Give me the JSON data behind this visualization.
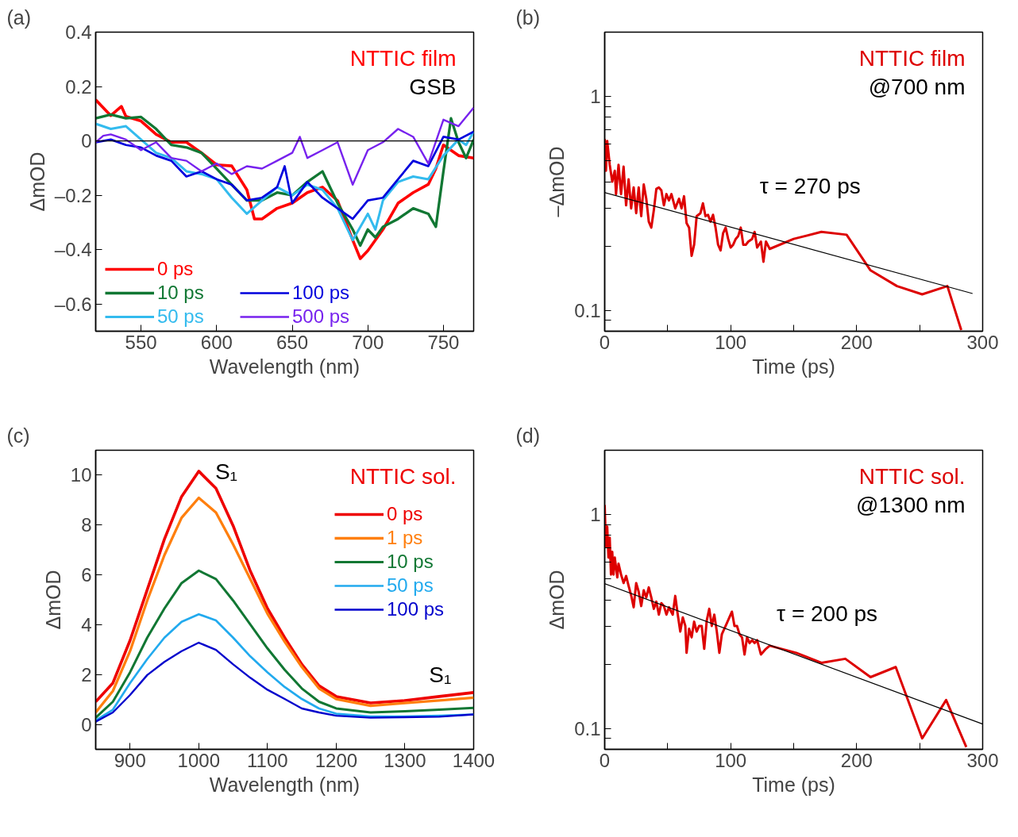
{
  "chart_data": [
    {
      "type": "line",
      "xlabel": "Wavelength (nm)",
      "ylabel": "ΔmOD",
      "xlim": [
        520,
        770
      ],
      "ylim": [
        -0.7,
        0.4
      ],
      "xticks": [
        550,
        600,
        650,
        700,
        750
      ],
      "yticks": [
        0.4,
        0.2,
        0,
        {
          "value": -0.2,
          "label": "–0.2"
        },
        {
          "value": -0.4,
          "label": "–0.4"
        },
        {
          "value": -0.6,
          "label": "–0.6"
        }
      ],
      "legend": "bottom left",
      "series": [
        {
          "name": "0 ps",
          "color": "#ff0000",
          "x": [
            520,
            530,
            537,
            540,
            550,
            560,
            570,
            580,
            590,
            600,
            610,
            620,
            625,
            630,
            640,
            650,
            660,
            670,
            680,
            690,
            695,
            700,
            710,
            720,
            730,
            740,
            745,
            750,
            760,
            770
          ],
          "values": [
            0.151,
            0.093,
            0.127,
            0.09,
            0.073,
            0.024,
            -0.005,
            -0.005,
            -0.044,
            -0.088,
            -0.092,
            -0.18,
            -0.287,
            -0.287,
            -0.248,
            -0.229,
            -0.19,
            -0.17,
            -0.22,
            -0.365,
            -0.433,
            -0.404,
            -0.326,
            -0.229,
            -0.19,
            -0.16,
            -0.102,
            -0.015,
            -0.054,
            -0.063
          ]
        },
        {
          "name": "10 ps",
          "color": "#117733",
          "x": [
            520,
            530,
            540,
            550,
            560,
            570,
            580,
            590,
            600,
            610,
            620,
            630,
            640,
            650,
            660,
            670,
            680,
            690,
            695,
            700,
            705,
            710,
            720,
            730,
            740,
            745,
            750,
            755,
            760,
            765,
            770
          ],
          "values": [
            0.083,
            0.097,
            0.083,
            0.088,
            0.044,
            -0.015,
            -0.024,
            -0.044,
            -0.102,
            -0.161,
            -0.219,
            -0.219,
            -0.19,
            -0.2,
            -0.151,
            -0.112,
            -0.229,
            -0.326,
            -0.385,
            -0.326,
            -0.355,
            -0.316,
            -0.287,
            -0.248,
            -0.268,
            -0.316,
            -0.112,
            0.083,
            -0.005,
            -0.063,
            0.005
          ]
        },
        {
          "name": "50 ps",
          "color": "#33bbee",
          "x": [
            520,
            530,
            540,
            550,
            560,
            570,
            580,
            590,
            600,
            610,
            620,
            630,
            640,
            650,
            660,
            670,
            680,
            690,
            700,
            705,
            710,
            720,
            730,
            740,
            750,
            760,
            765,
            770
          ],
          "values": [
            0.063,
            0.044,
            0.054,
            0.005,
            -0.044,
            -0.063,
            -0.112,
            -0.122,
            -0.141,
            -0.209,
            -0.268,
            -0.219,
            -0.17,
            -0.2,
            -0.161,
            -0.18,
            -0.248,
            -0.365,
            -0.268,
            -0.326,
            -0.219,
            -0.151,
            -0.131,
            -0.141,
            -0.054,
            0.005,
            -0.015,
            0.034
          ]
        },
        {
          "name": "100 ps",
          "color": "#0000dd",
          "x": [
            520,
            530,
            540,
            550,
            560,
            570,
            580,
            590,
            600,
            610,
            620,
            630,
            640,
            645,
            650,
            660,
            670,
            680,
            690,
            700,
            710,
            720,
            730,
            740,
            750,
            760,
            770
          ],
          "values": [
            -0.005,
            0.005,
            -0.015,
            -0.024,
            -0.054,
            -0.073,
            -0.131,
            -0.112,
            -0.141,
            -0.161,
            -0.219,
            -0.209,
            -0.17,
            -0.093,
            -0.229,
            -0.151,
            -0.209,
            -0.248,
            -0.287,
            -0.219,
            -0.209,
            -0.141,
            -0.073,
            -0.093,
            0.015,
            0.005,
            0.034
          ]
        },
        {
          "name": "500 ps",
          "color": "#7722ee",
          "x": [
            520,
            525,
            530,
            540,
            550,
            560,
            570,
            580,
            590,
            600,
            610,
            620,
            630,
            640,
            650,
            655,
            660,
            670,
            680,
            690,
            700,
            710,
            720,
            730,
            740,
            750,
            760,
            770
          ],
          "values": [
            -0.005,
            0.019,
            0.024,
            0.005,
            -0.034,
            -0.005,
            -0.063,
            -0.073,
            -0.112,
            -0.083,
            -0.122,
            -0.093,
            -0.102,
            -0.073,
            -0.044,
            0.015,
            -0.063,
            -0.034,
            -0.005,
            -0.161,
            -0.034,
            -0.005,
            0.044,
            0.015,
            -0.083,
            0.078,
            0.054,
            0.122
          ]
        }
      ],
      "ref_lines": [
        {
          "axis": "y",
          "value": 0,
          "color": "#000000"
        }
      ],
      "annotations": [
        "(a)",
        "NTTIC film",
        "GSB"
      ]
    },
    {
      "type": "line",
      "xlabel": "Time (ps)",
      "ylabel": "–ΔmOD",
      "log": true,
      "xlim": [
        0,
        300
      ],
      "ylim": [
        0.08,
        2
      ],
      "xticks": [
        0,
        {
          "value": 50,
          "label": null
        },
        100,
        {
          "value": 150,
          "label": null
        },
        200,
        {
          "value": 250,
          "label": null
        },
        300
      ],
      "yticks": [
        {
          "value": 0.09,
          "label": null
        },
        0.1,
        {
          "value": 0.2,
          "label": null
        },
        {
          "value": 0.3,
          "label": null
        },
        {
          "value": 0.4,
          "label": null
        },
        {
          "value": 0.5,
          "label": null
        },
        {
          "value": 0.6,
          "label": null
        },
        {
          "value": 0.7,
          "label": null
        },
        {
          "value": 0.8,
          "label": null
        },
        {
          "value": 0.9,
          "label": null
        },
        1
      ],
      "series": [
        {
          "color": "#dd0000",
          "x": [
            0,
            1,
            2,
            4,
            6,
            8,
            9,
            11,
            13,
            15,
            17,
            19,
            21,
            23,
            25,
            27,
            29,
            31,
            33,
            35,
            37,
            39,
            41,
            43,
            45,
            47,
            49,
            51,
            53,
            56,
            59,
            61,
            63,
            65,
            67,
            69,
            71,
            73,
            76,
            78,
            80,
            82,
            84,
            86,
            88,
            90,
            92,
            94,
            96,
            98,
            100,
            102,
            104,
            106,
            108,
            110,
            112,
            114,
            117,
            119,
            121,
            124,
            126,
            128,
            131,
            150,
            172,
            192,
            211,
            232,
            252,
            272,
            283
          ],
          "values": [
            0.634,
            0.45,
            0.62,
            0.48,
            0.4,
            0.45,
            0.35,
            0.48,
            0.35,
            0.47,
            0.31,
            0.41,
            0.3,
            0.376,
            0.285,
            0.376,
            0.276,
            0.388,
            0.333,
            0.26,
            0.244,
            0.294,
            0.37,
            0.376,
            0.364,
            0.31,
            0.35,
            0.327,
            0.35,
            0.3,
            0.333,
            0.3,
            0.342,
            0.256,
            0.244,
            0.18,
            0.203,
            0.276,
            0.285,
            0.317,
            0.276,
            0.28,
            0.26,
            0.28,
            0.244,
            0.203,
            0.191,
            0.23,
            0.244,
            0.216,
            0.197,
            0.203,
            0.216,
            0.223,
            0.244,
            0.203,
            0.203,
            0.21,
            0.216,
            0.233,
            0.197,
            0.21,
            0.169,
            0.21,
            0.194,
            0.216,
            0.233,
            0.226,
            0.154,
            0.13,
            0.119,
            0.13,
            0.081
          ]
        },
        {
          "type": "line",
          "color": "#000000",
          "x": [
            0,
            292
          ],
          "values": [
            0.356,
            0.12
          ]
        }
      ],
      "annotations": [
        "(b)",
        "NTTIC film",
        "@700 nm",
        "τ = 270 ps"
      ]
    },
    {
      "type": "line",
      "xlabel": "Wavelength (nm)",
      "ylabel": "ΔmOD",
      "xlim": [
        850,
        1400
      ],
      "ylim": [
        -1,
        11
      ],
      "xticks": [
        900,
        1000,
        1100,
        1200,
        1300,
        1400
      ],
      "yticks": [
        0,
        2,
        4,
        6,
        8,
        10
      ],
      "legend": "top right",
      "x": [
        850,
        875,
        900,
        925,
        950,
        975,
        1000,
        1025,
        1050,
        1075,
        1100,
        1125,
        1150,
        1175,
        1200,
        1250,
        1300,
        1350,
        1400
      ],
      "series": [
        {
          "name": "0 ps",
          "color": "#ee0000",
          "values": [
            0.91,
            1.66,
            3.37,
            5.4,
            7.43,
            9.14,
            10.16,
            9.47,
            7.97,
            6.15,
            4.65,
            3.48,
            2.41,
            1.55,
            1.12,
            0.86,
            0.96,
            1.12,
            1.28
          ]
        },
        {
          "name": "1 ps",
          "color": "#ff7f0e",
          "values": [
            0.48,
            1.34,
            2.94,
            4.97,
            6.79,
            8.29,
            9.09,
            8.5,
            7.22,
            5.83,
            4.44,
            3.32,
            2.3,
            1.44,
            1.02,
            0.75,
            0.86,
            0.96,
            1.07
          ]
        },
        {
          "name": "10 ps",
          "color": "#117733",
          "values": [
            0.27,
            0.91,
            2.09,
            3.48,
            4.65,
            5.67,
            6.17,
            5.83,
            4.97,
            4.01,
            3.05,
            2.19,
            1.44,
            0.91,
            0.64,
            0.48,
            0.53,
            0.59,
            0.66
          ]
        },
        {
          "name": "50 ps",
          "color": "#22aaee",
          "values": [
            0.16,
            0.59,
            1.66,
            2.62,
            3.48,
            4.12,
            4.42,
            4.17,
            3.48,
            2.73,
            2.09,
            1.5,
            1.02,
            0.64,
            0.43,
            0.32,
            0.32,
            0.35,
            0.4
          ]
        },
        {
          "name": "100 ps",
          "color": "#0000cc",
          "values": [
            0.11,
            0.48,
            1.18,
            1.98,
            2.51,
            2.94,
            3.28,
            2.99,
            2.41,
            1.87,
            1.39,
            1.02,
            0.64,
            0.48,
            0.35,
            0.27,
            0.29,
            0.31,
            0.4
          ]
        }
      ],
      "annotations": [
        "(c)",
        "NTTIC sol.",
        "S₁",
        "S₁"
      ]
    },
    {
      "type": "line",
      "xlabel": "Time (ps)",
      "ylabel": "ΔmOD",
      "log": true,
      "xlim": [
        0,
        300
      ],
      "ylim": [
        0.08,
        2
      ],
      "xticks": [
        0,
        {
          "value": 50,
          "label": null
        },
        100,
        {
          "value": 150,
          "label": null
        },
        200,
        {
          "value": 250,
          "label": null
        },
        300
      ],
      "yticks": [
        {
          "value": 0.09,
          "label": null
        },
        0.1,
        {
          "value": 0.2,
          "label": null
        },
        {
          "value": 0.3,
          "label": null
        },
        {
          "value": 0.4,
          "label": null
        },
        {
          "value": 0.5,
          "label": null
        },
        {
          "value": 0.6,
          "label": null
        },
        {
          "value": 0.7,
          "label": null
        },
        {
          "value": 0.8,
          "label": null
        },
        {
          "value": 0.9,
          "label": null
        },
        1
      ],
      "series": [
        {
          "color": "#dd0000",
          "x": [
            0,
            1,
            2,
            3,
            4,
            5,
            6,
            7,
            8,
            10,
            11,
            13,
            15,
            17,
            19,
            21,
            23,
            25,
            27,
            29,
            31,
            33,
            35,
            37,
            39,
            41,
            43,
            45,
            47,
            49,
            51,
            54,
            56,
            58,
            60,
            62,
            64,
            65,
            67,
            69,
            71,
            73,
            75,
            77,
            79,
            81,
            83,
            85,
            87,
            89,
            91,
            93,
            95,
            97,
            99,
            101,
            103,
            105,
            107,
            109,
            111,
            113,
            115,
            117,
            119,
            121,
            124,
            128,
            131,
            152,
            172,
            191,
            211,
            231,
            252,
            271,
            287
          ],
          "values": [
            1.11,
            0.71,
            0.88,
            0.63,
            0.78,
            0.525,
            0.67,
            0.525,
            0.63,
            0.509,
            0.59,
            0.525,
            0.479,
            0.517,
            0.464,
            0.42,
            0.369,
            0.479,
            0.436,
            0.374,
            0.443,
            0.41,
            0.457,
            0.41,
            0.363,
            0.392,
            0.341,
            0.386,
            0.374,
            0.341,
            0.369,
            0.341,
            0.417,
            0.341,
            0.284,
            0.331,
            0.302,
            0.226,
            0.293,
            0.267,
            0.316,
            0.284,
            0.302,
            0.302,
            0.236,
            0.32,
            0.363,
            0.302,
            0.341,
            0.284,
            0.226,
            0.276,
            0.293,
            0.311,
            0.331,
            0.352,
            0.302,
            0.302,
            0.276,
            0.267,
            0.222,
            0.267,
            0.251,
            0.259,
            0.251,
            0.259,
            0.222,
            0.236,
            0.244,
            0.226,
            0.203,
            0.212,
            0.174,
            0.194,
            0.09,
            0.136,
            0.082
          ]
        },
        {
          "type": "line",
          "color": "#000000",
          "x": [
            0,
            300
          ],
          "values": [
            0.476,
            0.105
          ]
        }
      ],
      "annotations": [
        "(d)",
        "NTTIC sol.",
        "@1300 nm",
        "τ = 200 ps"
      ]
    }
  ]
}
